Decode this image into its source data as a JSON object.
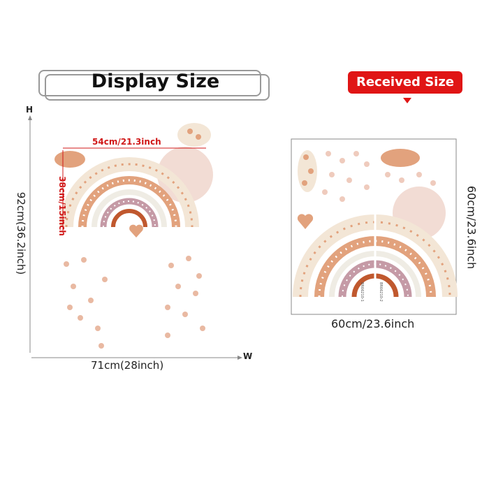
{
  "display": {
    "title": "Display Size",
    "height_axis": "H",
    "width_axis": "W",
    "height_label": "92cm(36.2inch)",
    "width_label": "71cm(28inch)",
    "rainbow_width": "54cm/21.3inch",
    "rainbow_height": "38cm/15inch"
  },
  "received": {
    "badge": "Received Size",
    "width_label": "60cm/23.6inch",
    "height_label": "60cm/23.6inch",
    "sheet_codes": [
      "BR66210-1",
      "BR66210-2"
    ]
  },
  "colors": {
    "accent": "#e01515",
    "cream": "#f3e6d6",
    "peach": "#e2a27d",
    "mauve": "#c59aa6",
    "rust": "#c0582e",
    "pink": "#f0d6cc"
  }
}
